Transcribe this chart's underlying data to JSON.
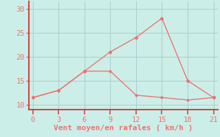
{
  "xlabel": "Vent moyen/en rafales ( km/h )",
  "bg_color": "#cceee8",
  "line_color": "#f07070",
  "spine_color": "#cc4444",
  "grid_color": "#aacccc",
  "x_rafales": [
    0,
    3,
    6,
    9,
    12,
    15,
    18,
    21
  ],
  "y_rafales": [
    11.5,
    13.0,
    17.0,
    21.0,
    24.0,
    28.0,
    15.0,
    11.5
  ],
  "x_moyen": [
    0,
    3,
    6,
    9,
    12,
    15,
    18,
    21
  ],
  "y_moyen": [
    11.5,
    13.0,
    17.0,
    17.0,
    12.0,
    11.5,
    11.0,
    11.5
  ],
  "xlim": [
    -0.5,
    21.5
  ],
  "ylim": [
    9.0,
    31.5
  ],
  "xticks": [
    0,
    3,
    6,
    9,
    12,
    15,
    18,
    21
  ],
  "yticks": [
    10,
    15,
    20,
    25,
    30
  ],
  "xlabel_fontsize": 8,
  "tick_fontsize": 7.5
}
